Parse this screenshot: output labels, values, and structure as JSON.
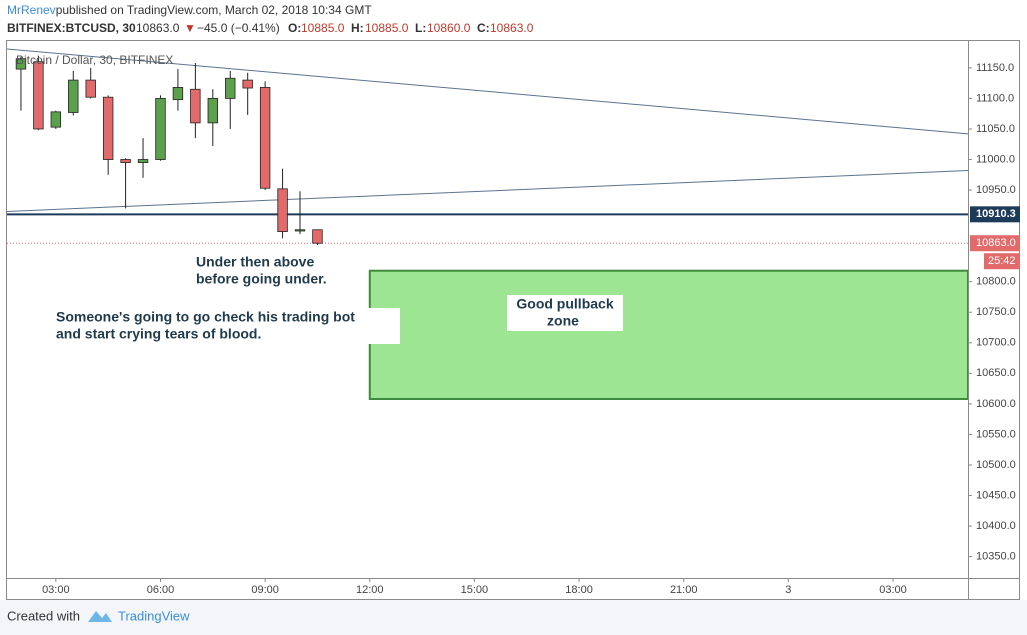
{
  "header": {
    "author": "MrRenev",
    "published": " published on TradingView.com, March 02, 2018 10:34 GMT",
    "symbol": "BITFINEX:BTCUSD, 30",
    "last": "10863.0",
    "arrow": "▼",
    "change": "−45.0 (−0.41%)",
    "o_label": "O:",
    "o": "10885.0",
    "h_label": "H:",
    "h": "10885.0",
    "l_label": "L:",
    "l": "10860.0",
    "c_label": "C:",
    "c": "10863.0"
  },
  "chart_data": {
    "type": "candlestick",
    "legend": "Bitcoin / Dollar, 30, BITFINEX",
    "x": [
      2,
      2.5,
      3,
      3.5,
      4,
      4.5,
      5,
      5.5,
      6,
      6.5,
      7,
      7.5,
      8,
      8.5,
      9,
      9.5,
      10,
      10.5
    ],
    "open": [
      11148,
      11160,
      11053,
      11077,
      11130,
      11102,
      11000,
      10995,
      11000,
      11098,
      11115,
      11060,
      11100,
      11130,
      11118,
      10952,
      10883,
      10885
    ],
    "high": [
      11168,
      11170,
      11080,
      11145,
      11150,
      11105,
      11002,
      11035,
      11105,
      11148,
      11158,
      11115,
      11145,
      11142,
      11128,
      10985,
      10948,
      10885
    ],
    "low": [
      11080,
      11048,
      11050,
      11072,
      11100,
      10975,
      10920,
      10970,
      10998,
      11080,
      11035,
      11022,
      11050,
      11073,
      10950,
      10871,
      10878,
      10860
    ],
    "close": [
      11165,
      11050,
      11078,
      11130,
      11102,
      11000,
      10995,
      11000,
      11100,
      11118,
      11060,
      11100,
      11133,
      11117,
      10953,
      10882,
      10885,
      10863
    ],
    "up_color": "#5ba14b",
    "down_color": "#e36a6a",
    "wick_color": "#222222",
    "xlim": [
      1.6,
      29.15
    ],
    "ylim": [
      10315,
      11194
    ],
    "xticks": [
      {
        "value": 3,
        "label": "03:00"
      },
      {
        "value": 6,
        "label": "06:00"
      },
      {
        "value": 9,
        "label": "09:00"
      },
      {
        "value": 12,
        "label": "12:00"
      },
      {
        "value": 15,
        "label": "15:00"
      },
      {
        "value": 18,
        "label": "18:00"
      },
      {
        "value": 21,
        "label": "21:00"
      },
      {
        "value": 24,
        "label": "3"
      },
      {
        "value": 27,
        "label": "03:00"
      }
    ],
    "yticks": [
      {
        "value": 10350,
        "label": "10350.0"
      },
      {
        "value": 10400,
        "label": "10400.0"
      },
      {
        "value": 10450,
        "label": "10450.0"
      },
      {
        "value": 10500,
        "label": "10500.0"
      },
      {
        "value": 10550,
        "label": "10550.0"
      },
      {
        "value": 10600,
        "label": "10600.0"
      },
      {
        "value": 10650,
        "label": "10650.0"
      },
      {
        "value": 10700,
        "label": "10700.0"
      },
      {
        "value": 10750,
        "label": "10750.0"
      },
      {
        "value": 10800,
        "label": "10800.0"
      },
      {
        "value": 10950,
        "label": "10950.0"
      },
      {
        "value": 11000,
        "label": "11000.0"
      },
      {
        "value": 11050,
        "label": "11050.0"
      },
      {
        "value": 11100,
        "label": "11100.0"
      },
      {
        "value": 11150,
        "label": "11150.0"
      }
    ],
    "grid": false,
    "trend_lines": [
      {
        "x": [
          1.6,
          29.15
        ],
        "y": [
          11181,
          11042
        ],
        "color": "#5b7390"
      },
      {
        "x": [
          1.6,
          29.15
        ],
        "y": [
          10915,
          10982
        ],
        "color": "#5b7390"
      }
    ],
    "price_line": {
      "value": 10910.3,
      "label": "10910.3",
      "color": "#1c3a5a"
    },
    "last_price": {
      "value": 10863,
      "label": "10863.0",
      "color": "#e36a6a"
    },
    "countdown": "25:42",
    "zone": {
      "x": [
        12,
        29.15
      ],
      "y": [
        10608,
        10818
      ],
      "color": "#9de592",
      "border": "#3f8a3c"
    },
    "annotations": [
      "Under then above",
      "before going under.",
      "Someone's going to go check his trading bot",
      "and start crying tears of blood.",
      "Good pullback",
      "zone"
    ]
  },
  "footer": {
    "created": "Created with",
    "brand": "TradingView"
  }
}
